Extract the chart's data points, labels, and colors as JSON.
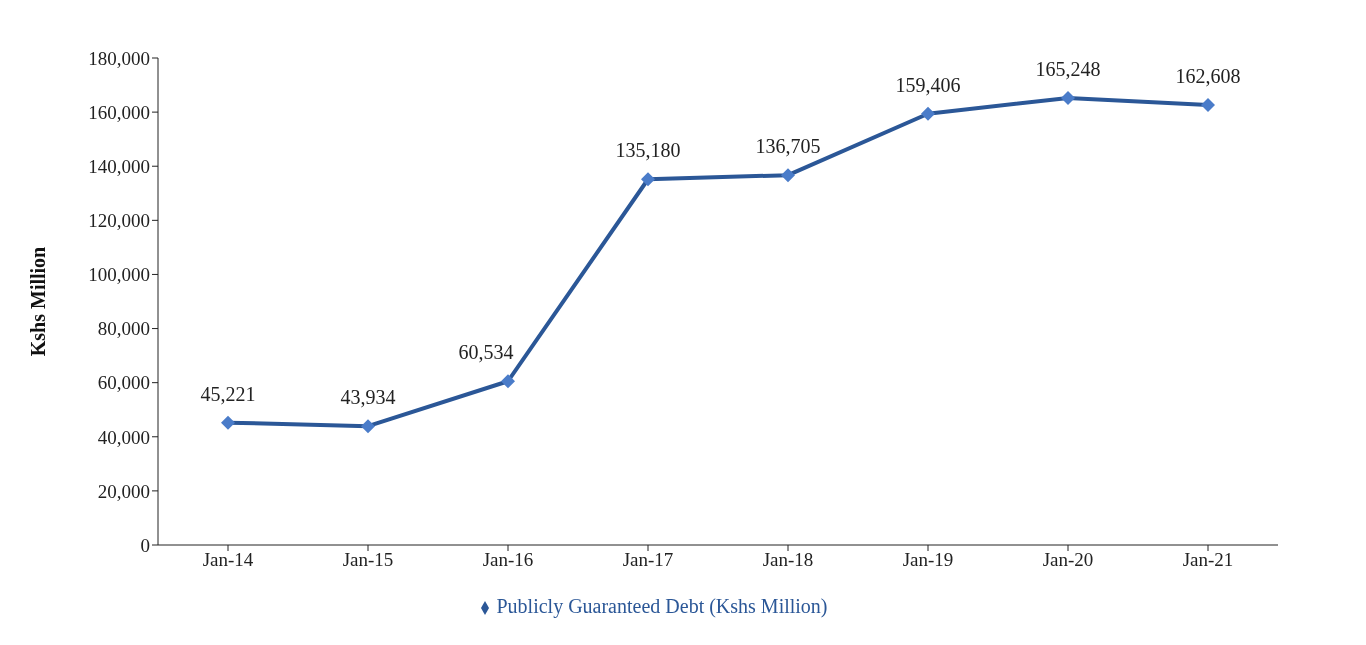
{
  "chart_data": {
    "type": "line",
    "ylabel": "Kshs Million",
    "categories": [
      "Jan-14",
      "Jan-15",
      "Jan-16",
      "Jan-17",
      "Jan-18",
      "Jan-19",
      "Jan-20",
      "Jan-21"
    ],
    "series": [
      {
        "name": "Publicly Guaranteed Debt (Kshs Million)",
        "color": "#2b5797",
        "values": [
          45221,
          43934,
          60534,
          135180,
          136705,
          159406,
          165248,
          162608
        ]
      }
    ],
    "ylim": [
      0,
      180000
    ],
    "yticks": [
      {
        "value": 0,
        "label": "0"
      },
      {
        "value": 20000,
        "label": "20,000"
      },
      {
        "value": 40000,
        "label": "40,000"
      },
      {
        "value": 60000,
        "label": "60,000"
      },
      {
        "value": 80000,
        "label": "80,000"
      },
      {
        "value": 100000,
        "label": "100,000"
      },
      {
        "value": 120000,
        "label": "120,000"
      },
      {
        "value": 140000,
        "label": "140,000"
      },
      {
        "value": 160000,
        "label": "160,000"
      },
      {
        "value": 180000,
        "label": "180,000"
      }
    ],
    "value_labels": [
      [
        "45,221",
        "43,934",
        "60,534",
        "135,180",
        "136,705",
        "159,406",
        "165,248",
        "162,608"
      ]
    ],
    "grid": false,
    "legend": "bottom",
    "marker": "diamond",
    "line_style": "solid"
  }
}
